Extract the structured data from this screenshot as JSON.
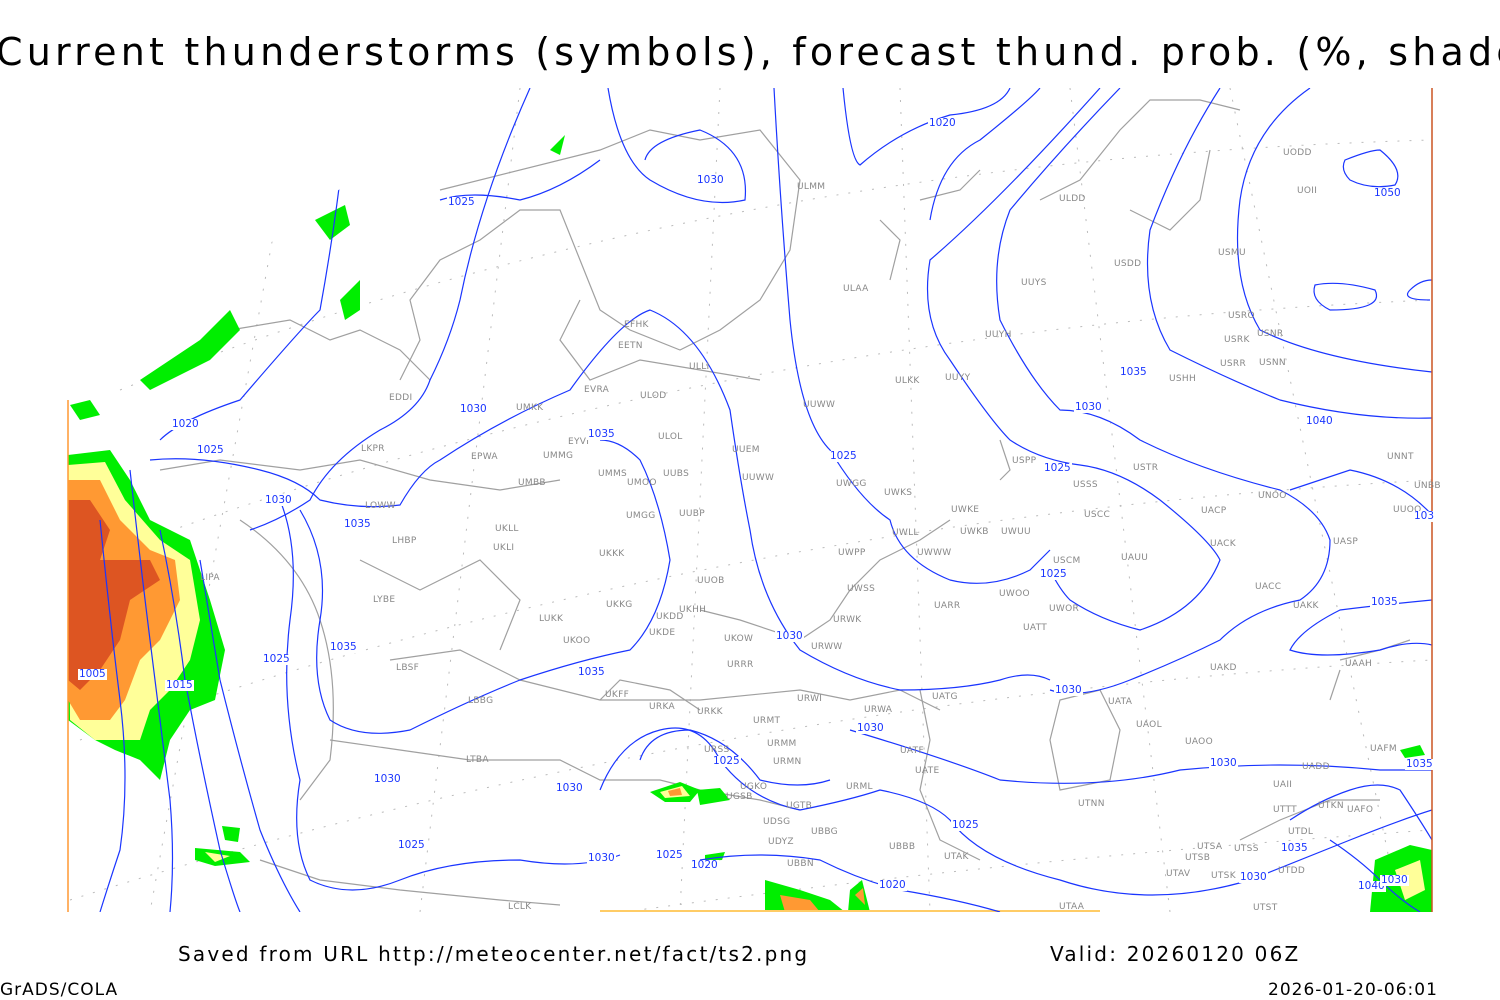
{
  "title": "Current thunderstorms (symbols), forecast thund. prob. (%, shaded)",
  "footer": {
    "saved_from": "Saved from URL http://meteocenter.net/fact/ts2.png",
    "valid": "Valid: 20260120 06Z",
    "software": "GrADS/COLA",
    "timestamp": "2026-01-20-06:01"
  },
  "colors": {
    "isobar": "#1a35ff",
    "coastline": "#a0a0a0",
    "prob_low": "#00ee00",
    "prob_mid": "#ffff99",
    "prob_high": "#ff9933",
    "prob_max": "#dd5522"
  },
  "stations": [
    "UODD",
    "UOII",
    "USMU",
    "USRO",
    "USNR",
    "USRK",
    "USRR",
    "USNN",
    "USHH",
    "ULDD",
    "USDD",
    "UUYS",
    "UUYH",
    "ULMM",
    "ULAA",
    "ULKK",
    "UUYY",
    "UUWW",
    "EFHK",
    "EETN",
    "ULLI",
    "EVRA",
    "ULOD",
    "EDDI",
    "UMKK",
    "ULOL",
    "UUEM",
    "EYVI",
    "EPWA",
    "UMMG",
    "LKPR",
    "UMMS",
    "UMOO",
    "UUBS",
    "UUWW",
    "UMBB",
    "USPP",
    "USTR",
    "USSS",
    "UWGG",
    "UWKS",
    "UNOO",
    "UNNT",
    "UNBB",
    "LOWW",
    "UMGG",
    "UUBP",
    "UWKE",
    "UWKB",
    "UWUU",
    "USCC",
    "UACP",
    "UKLL",
    "UKLI",
    "LHBP",
    "UWLL",
    "UWWW",
    "UACK",
    "UASP",
    "UKKK",
    "UWPP",
    "USCM",
    "UAUU",
    "LIPA",
    "UUOO",
    "UUOB",
    "UWSS",
    "UWOO",
    "UWOR",
    "UACC",
    "UAKK",
    "LYBE",
    "LUKK",
    "UKKG",
    "UKDD",
    "UKHH",
    "UARR",
    "URWK",
    "UATT",
    "UKOO",
    "UKDE",
    "UKOW",
    "URWW",
    "LBSF",
    "URRR",
    "UAKD",
    "UAAH",
    "LBBG",
    "UKFF",
    "UATG",
    "URWI",
    "UATA",
    "URKA",
    "URKK",
    "URMT",
    "URWA",
    "UAOL",
    "URSS",
    "URMM",
    "UATF",
    "UATE",
    "UAOO",
    "UAFM",
    "LTBA",
    "URMN",
    "UADD",
    "UGKO",
    "URML",
    "UGSB",
    "UAII",
    "UGTB",
    "UTNN",
    "UTTT",
    "UTKN",
    "UAFO",
    "UDSG",
    "UTDL",
    "UBBG",
    "UDYZ",
    "UBBB",
    "UTSA",
    "UTSS",
    "UTSB",
    "UTAK",
    "UBBN",
    "UTAV",
    "UTSK",
    "UTDD",
    "LCLK",
    "UTAA",
    "UTST"
  ],
  "isobar_labels": [
    "1020",
    "1030",
    "1025",
    "1050",
    "1030",
    "1035",
    "1020",
    "1025",
    "1030",
    "1035",
    "1035",
    "1030",
    "1040",
    "1025",
    "1025",
    "1025",
    "1035",
    "1030",
    "1035",
    "1025",
    "1005",
    "1015",
    "1035",
    "1030",
    "1030",
    "1025",
    "1030",
    "1035",
    "1030",
    "1030",
    "1025",
    "1025",
    "1030",
    "1025",
    "1020",
    "1035",
    "1030",
    "1020",
    "1040",
    "1030",
    "103"
  ]
}
